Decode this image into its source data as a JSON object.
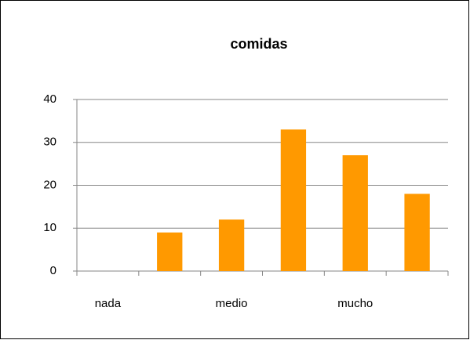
{
  "chart_data": {
    "type": "bar",
    "title": "comidas",
    "categories": [
      "nada",
      null,
      "medio",
      null,
      "mucho",
      null
    ],
    "values": [
      0,
      9,
      12,
      33,
      27,
      18
    ],
    "color": "#ff9900",
    "ylim": [
      0,
      40
    ],
    "yticks": [
      0,
      10,
      20,
      30,
      40
    ],
    "grid": true
  }
}
